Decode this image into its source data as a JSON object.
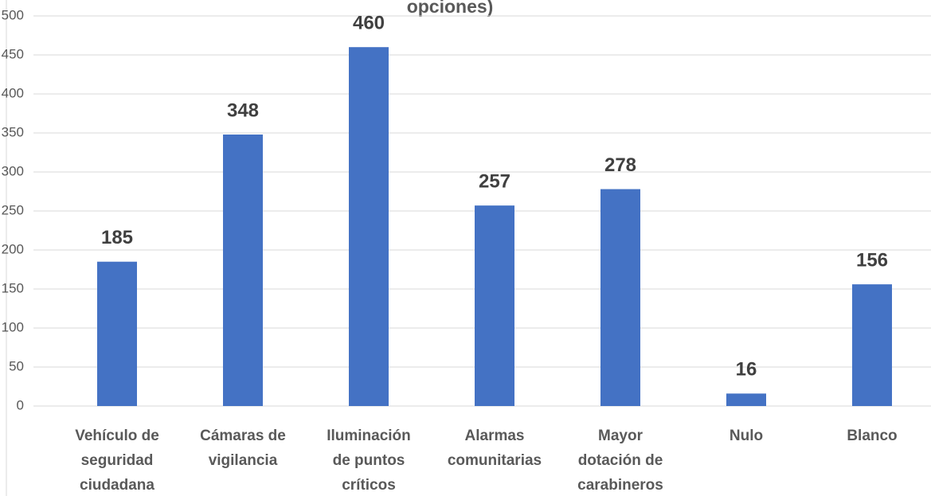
{
  "chart_data": {
    "type": "bar",
    "title": "opciones)",
    "categories": [
      [
        "Vehículo de",
        "seguridad",
        "ciudadana"
      ],
      [
        "Cámaras de",
        "vigilancia"
      ],
      [
        "Iluminación",
        "de puntos",
        "críticos"
      ],
      [
        "Alarmas",
        "comunitarias"
      ],
      [
        "Mayor",
        "dotación de",
        "carabineros"
      ],
      [
        "Nulo"
      ],
      [
        "Blanco"
      ]
    ],
    "values": [
      185,
      348,
      460,
      257,
      278,
      16,
      156
    ],
    "color": "#4472c4",
    "ylim": [
      0,
      500
    ],
    "yticks": [
      0,
      50,
      100,
      150,
      200,
      250,
      300,
      350,
      400,
      450,
      500
    ],
    "grid": true
  }
}
